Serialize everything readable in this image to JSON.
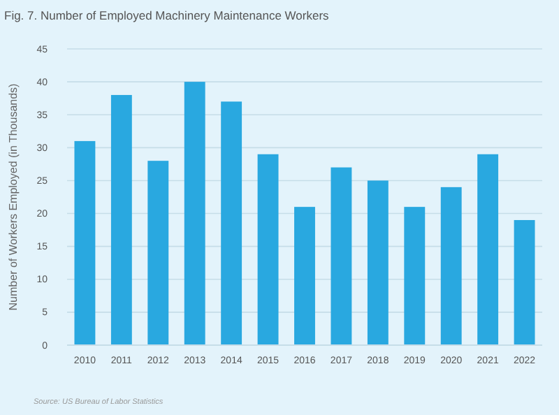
{
  "chart_data": {
    "type": "bar",
    "title": "Fig. 7. Number of Employed Machinery Maintenance Workers",
    "ylabel": "Number of Workers Employed (in Thousands)",
    "categories": [
      "2010",
      "2011",
      "2012",
      "2013",
      "2014",
      "2015",
      "2016",
      "2017",
      "2018",
      "2019",
      "2020",
      "2021",
      "2022"
    ],
    "values": [
      31,
      38,
      28,
      40,
      37,
      29,
      21,
      27,
      25,
      21,
      24,
      29,
      19
    ],
    "color": "#29a8e0",
    "ylim": [
      0,
      45
    ],
    "yticks": [
      0,
      5,
      10,
      15,
      20,
      25,
      30,
      35,
      40,
      45
    ],
    "grid": "y",
    "annotations": [
      "Source: US Bureau of Labor Statistics"
    ]
  }
}
